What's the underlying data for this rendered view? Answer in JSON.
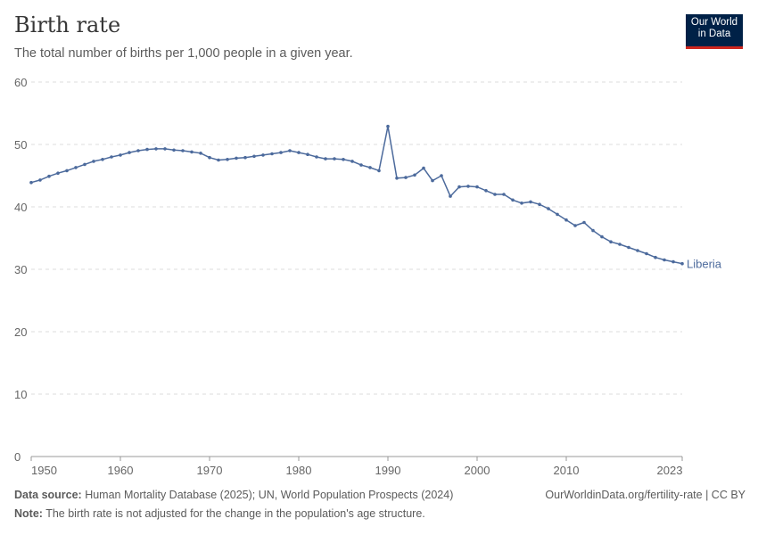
{
  "header": {
    "title": "Birth rate",
    "subtitle": "The total number of births per 1,000 people in a given year.",
    "logo_text": "Our World in Data"
  },
  "chart_data": {
    "type": "line",
    "title": "Birth rate",
    "subtitle": "The total number of births per 1,000 people in a given year.",
    "xlim": [
      1950,
      2023
    ],
    "ylim": [
      0,
      60
    ],
    "yticks": [
      0,
      10,
      20,
      30,
      40,
      50,
      60
    ],
    "xticks": [
      1950,
      1960,
      1970,
      1980,
      1990,
      2000,
      2010,
      2023
    ],
    "grid": "horizontal dashed",
    "series": [
      {
        "name": "Liberia",
        "color": "#4c6a9c",
        "x": [
          1950,
          1951,
          1952,
          1953,
          1954,
          1955,
          1956,
          1957,
          1958,
          1959,
          1960,
          1961,
          1962,
          1963,
          1964,
          1965,
          1966,
          1967,
          1968,
          1969,
          1970,
          1971,
          1972,
          1973,
          1974,
          1975,
          1976,
          1977,
          1978,
          1979,
          1980,
          1981,
          1982,
          1983,
          1984,
          1985,
          1986,
          1987,
          1988,
          1989,
          1990,
          1991,
          1992,
          1993,
          1994,
          1995,
          1996,
          1997,
          1998,
          1999,
          2000,
          2001,
          2002,
          2003,
          2004,
          2005,
          2006,
          2007,
          2008,
          2009,
          2010,
          2011,
          2012,
          2013,
          2014,
          2015,
          2016,
          2017,
          2018,
          2019,
          2020,
          2021,
          2022,
          2023
        ],
        "values": [
          43.9,
          44.3,
          44.9,
          45.4,
          45.8,
          46.3,
          46.8,
          47.3,
          47.6,
          48.0,
          48.3,
          48.7,
          49.0,
          49.2,
          49.3,
          49.3,
          49.1,
          49.0,
          48.8,
          48.6,
          47.9,
          47.5,
          47.6,
          47.8,
          47.9,
          48.1,
          48.3,
          48.5,
          48.7,
          49.0,
          48.7,
          48.4,
          48.0,
          47.7,
          47.7,
          47.6,
          47.3,
          46.7,
          46.3,
          45.8,
          52.9,
          44.6,
          44.7,
          45.1,
          46.2,
          44.2,
          45.0,
          41.7,
          43.2,
          43.3,
          43.2,
          42.6,
          42.0,
          42.0,
          41.1,
          40.6,
          40.8,
          40.4,
          39.7,
          38.8,
          37.9,
          37.0,
          37.5,
          36.2,
          35.2,
          34.4,
          34.0,
          33.5,
          33.0,
          32.5,
          31.9,
          31.5,
          31.2,
          30.9
        ]
      }
    ]
  },
  "footer": {
    "source_label": "Data source:",
    "source": " Human Mortality Database (2025); UN, World Population Prospects (2024)",
    "url": "OurWorldinData.org/fertility-rate | CC BY",
    "note_label": "Note:",
    "note": " The birth rate is not adjusted for the change in the population's age structure."
  }
}
